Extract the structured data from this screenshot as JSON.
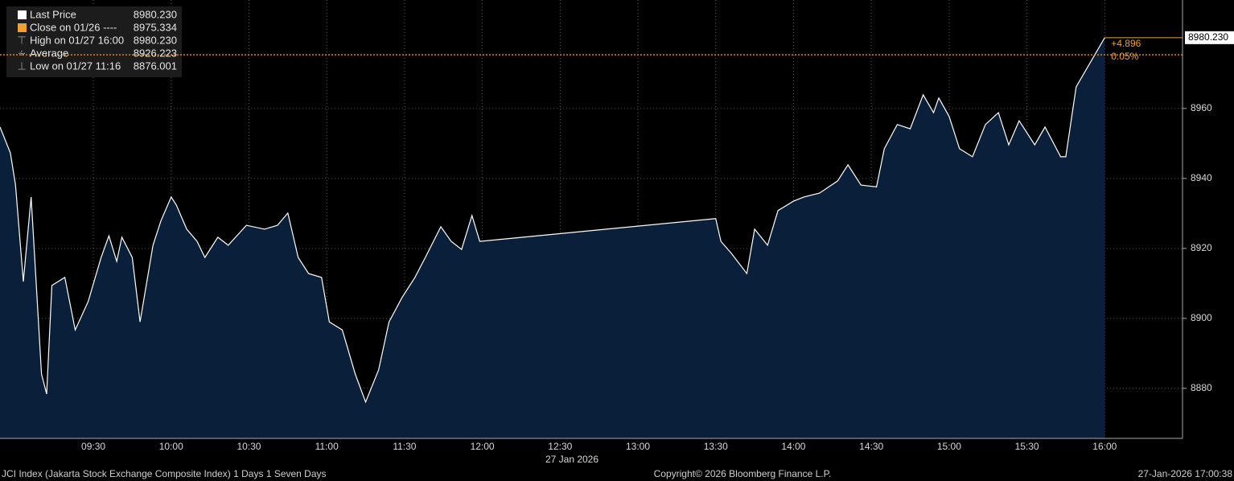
{
  "chart_data": {
    "type": "area",
    "legend": [
      {
        "name": "Last Price",
        "value": "8980.230"
      },
      {
        "name": "Close on 01/26 ----",
        "value": "8975.334"
      },
      {
        "name": "High on 01/27 16:00",
        "value": "8980.230"
      },
      {
        "name": "Average",
        "value": "8926.223"
      },
      {
        "name": "Low on 01/27 11:16",
        "value": "8876.001"
      }
    ],
    "x_label": "27 Jan 2026",
    "xlim": [
      534,
      990
    ],
    "xticks": [
      {
        "value": 570,
        "label": "09:30"
      },
      {
        "value": 600,
        "label": "10:00"
      },
      {
        "value": 630,
        "label": "10:30"
      },
      {
        "value": 660,
        "label": "11:00"
      },
      {
        "value": 690,
        "label": "11:30"
      },
      {
        "value": 720,
        "label": "12:00"
      },
      {
        "value": 750,
        "label": "12:30"
      },
      {
        "value": 780,
        "label": "13:00"
      },
      {
        "value": 810,
        "label": "13:30"
      },
      {
        "value": 840,
        "label": "14:00"
      },
      {
        "value": 870,
        "label": "14:30"
      },
      {
        "value": 900,
        "label": "15:00"
      },
      {
        "value": 930,
        "label": "15:30"
      },
      {
        "value": 960,
        "label": "16:00"
      }
    ],
    "ylim": [
      8865.7,
      8991
    ],
    "yticks": [
      8880,
      8900,
      8920,
      8940,
      8960
    ],
    "grid": true,
    "series": [
      {
        "name": "Last Price",
        "color": "#ffffff",
        "fill": "#0a1f3a",
        "x": [
          534,
          538,
          540,
          543,
          546,
          550,
          552,
          554,
          559,
          563,
          568,
          573,
          576,
          579,
          581,
          585,
          588,
          593,
          596,
          600,
          602,
          606,
          610,
          613,
          618,
          622,
          629,
          636,
          641,
          645,
          649,
          653,
          658,
          661,
          666,
          671,
          675,
          680,
          684,
          689,
          694,
          698,
          704,
          708,
          712,
          716,
          719,
          810,
          812,
          816,
          822,
          825,
          830,
          834,
          840,
          844,
          850,
          857,
          861,
          866,
          872,
          875,
          880,
          885,
          890,
          894,
          896,
          900,
          904,
          909,
          914,
          919,
          923,
          927,
          933,
          937,
          943,
          945,
          949,
          960
        ],
        "values": [
          8954.7,
          8947.3,
          8938.1,
          8910.5,
          8934.7,
          8884.1,
          8878.4,
          8909.4,
          8911.7,
          8896.7,
          8904.8,
          8917.4,
          8923.6,
          8916.3,
          8923.2,
          8917.4,
          8899.0,
          8920.9,
          8927.8,
          8934.7,
          8932.4,
          8925.5,
          8922.0,
          8917.4,
          8923.2,
          8920.9,
          8926.6,
          8925.5,
          8926.6,
          8930.1,
          8917.4,
          8912.8,
          8911.7,
          8899.0,
          8896.7,
          8884.1,
          8876.1,
          8885.3,
          8899.0,
          8905.9,
          8911.7,
          8917.4,
          8926.2,
          8922.0,
          8919.7,
          8929.4,
          8922.0,
          8928.5,
          8922.0,
          8918.6,
          8912.8,
          8925.5,
          8920.9,
          8930.8,
          8933.5,
          8934.7,
          8935.8,
          8939.3,
          8943.9,
          8938.1,
          8937.6,
          8948.5,
          8955.4,
          8954.2,
          8963.9,
          8958.8,
          8963.0,
          8957.7,
          8948.5,
          8946.2,
          8955.4,
          8958.8,
          8949.6,
          8956.5,
          8949.6,
          8954.7,
          8946.2,
          8946.2,
          8966.2,
          8980.23
        ]
      }
    ],
    "reference_line": {
      "value": 8975.334,
      "color": "#f0a030"
    },
    "last_price_label": "8980.230",
    "annotations": [
      "+4.896",
      "0.05%"
    ],
    "footer": {
      "left": "JCI Index (Jakarta Stock Exchange Composite Index) 1 Days 1 Seven Days",
      "center": "Copyright© 2026 Bloomberg Finance L.P.",
      "right": "27-Jan-2026 17:00:38"
    }
  }
}
